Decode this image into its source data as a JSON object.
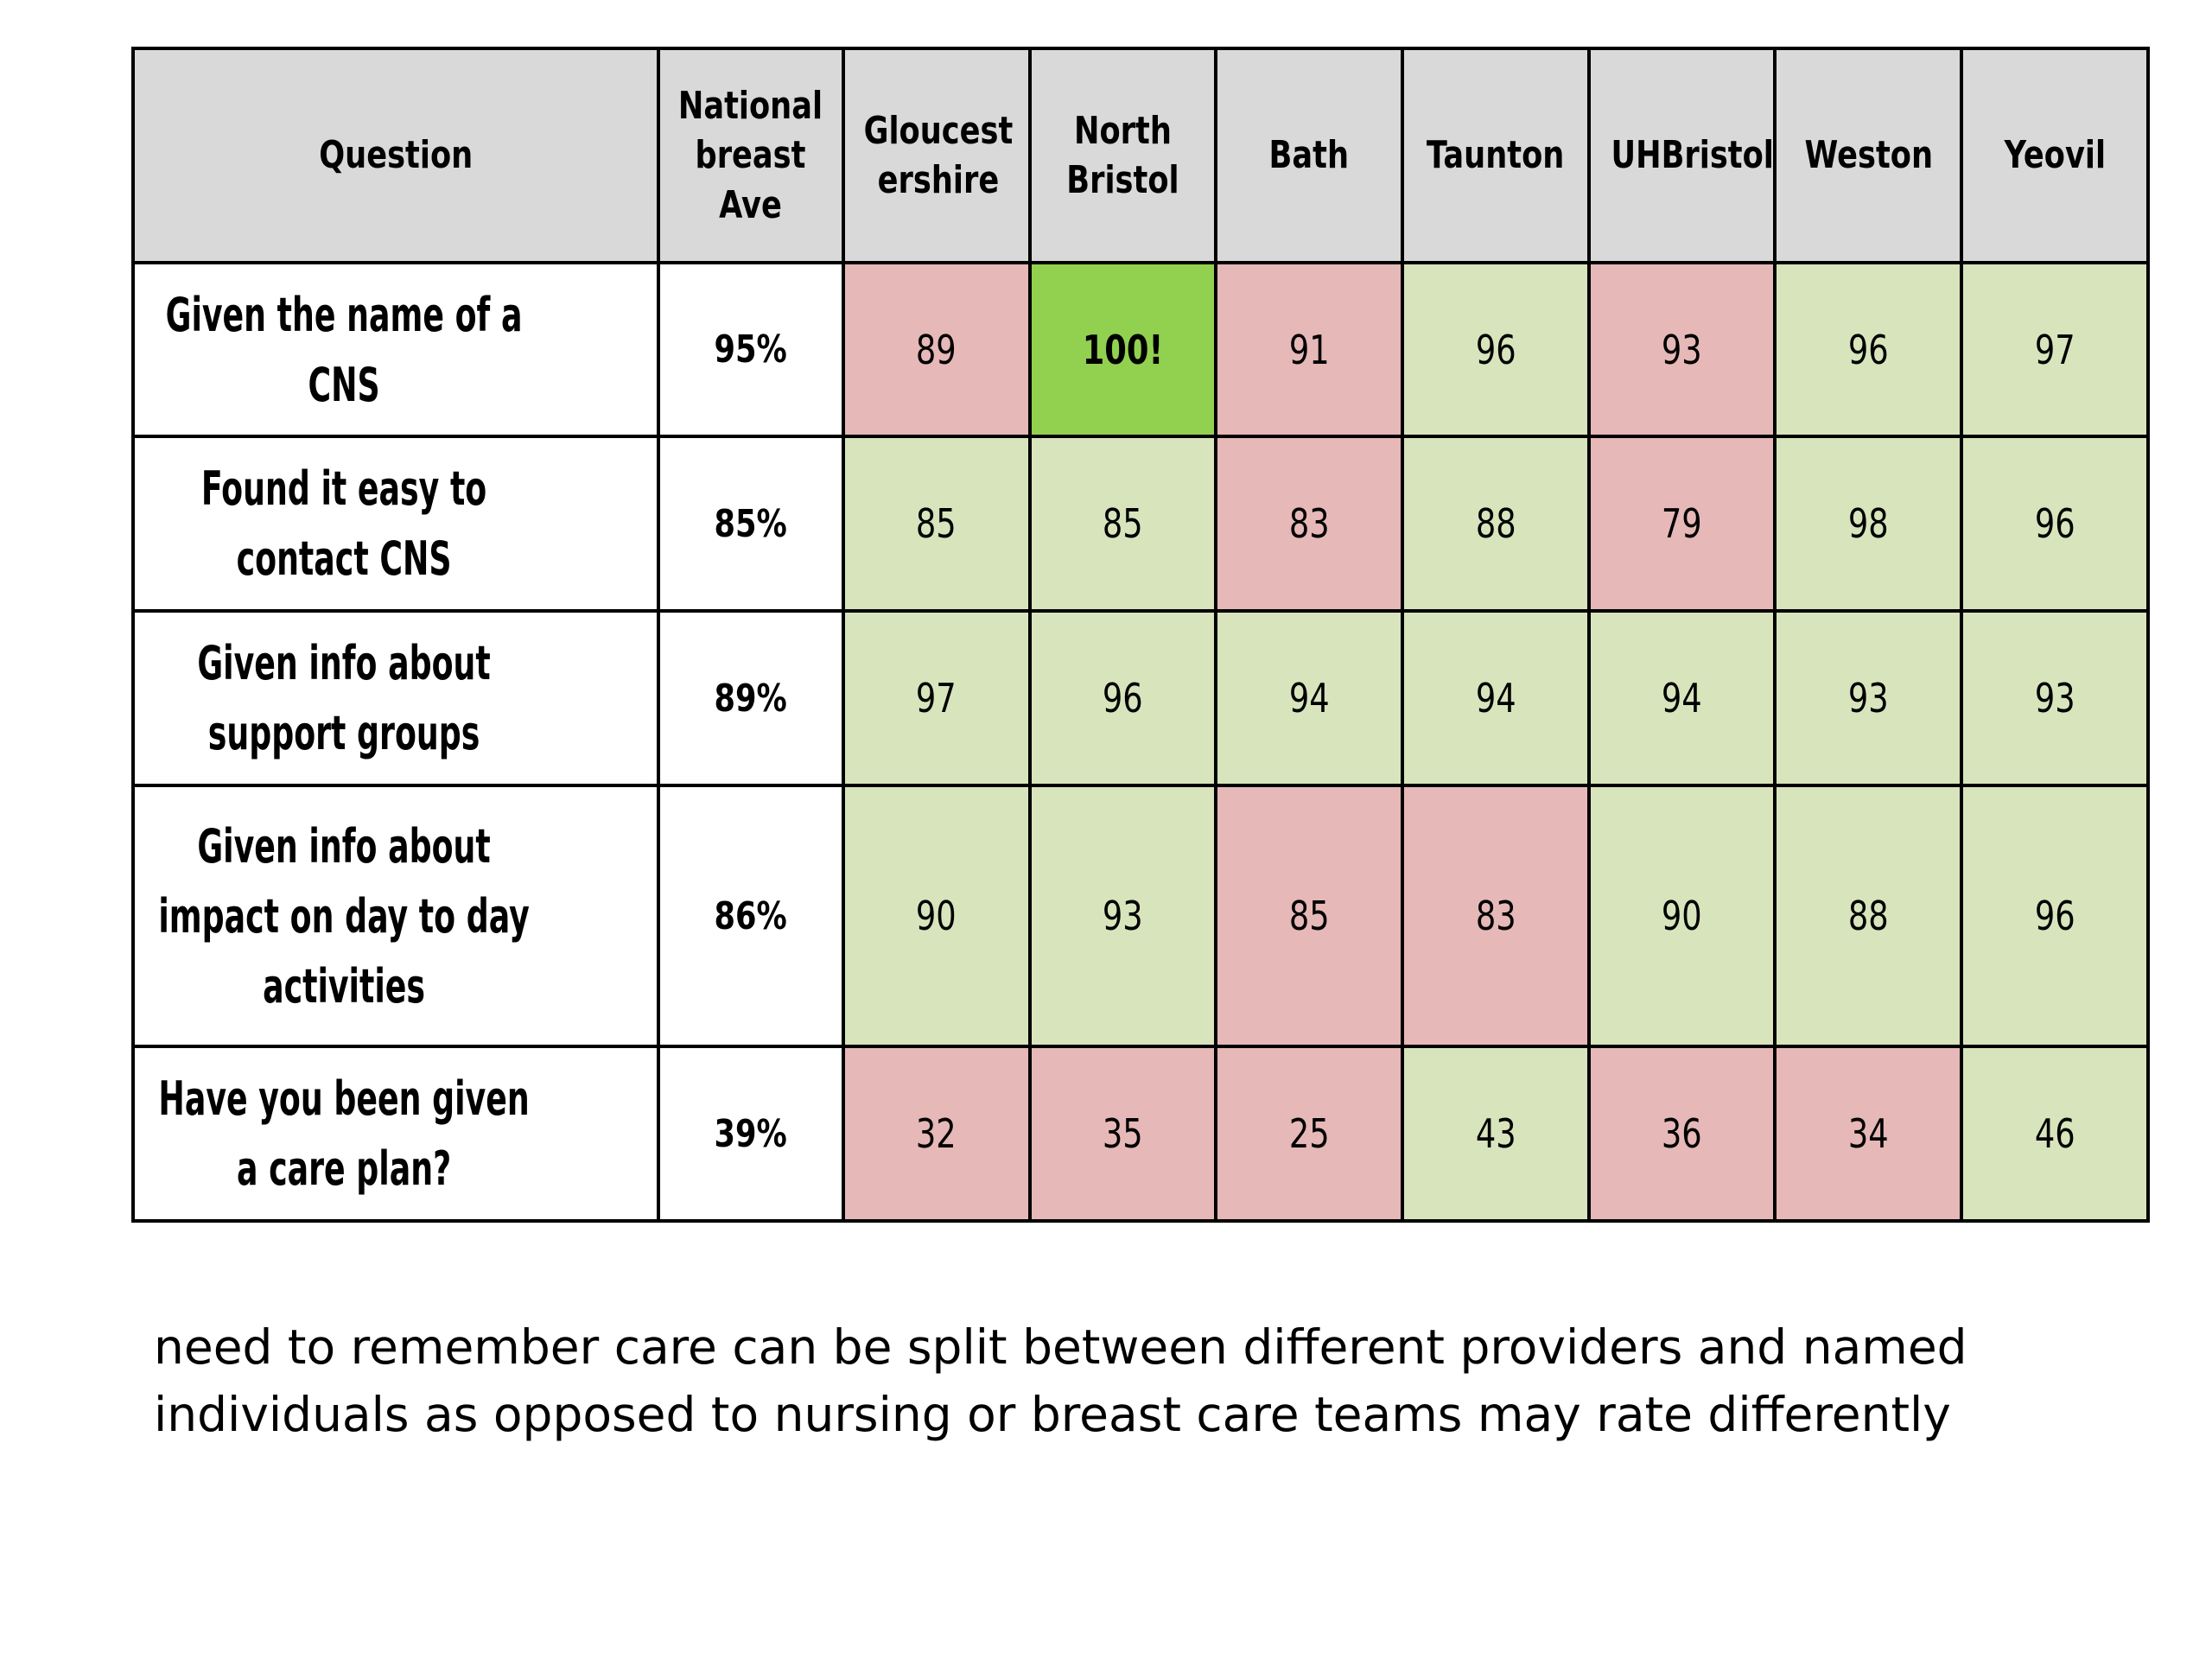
{
  "table": {
    "headers": {
      "question": "Question",
      "national": [
        "National",
        "breast",
        "Ave"
      ],
      "providers": [
        [
          "Gloucest",
          "ershire"
        ],
        [
          "North",
          "Bristol"
        ],
        [
          "Bath"
        ],
        [
          "Taunton"
        ],
        [
          "UHBristol"
        ],
        [
          "Weston"
        ],
        [
          "Yeovil"
        ]
      ]
    },
    "rows": [
      {
        "question": [
          "Given the name of a",
          "CNS"
        ],
        "national": "95%",
        "values": [
          "89",
          "100!",
          "91",
          "96",
          "93",
          "96",
          "97"
        ],
        "status": [
          "bad",
          "best",
          "bad",
          "good",
          "bad",
          "good",
          "good"
        ]
      },
      {
        "question": [
          "Found it easy to",
          "contact CNS"
        ],
        "national": "85%",
        "values": [
          "85",
          "85",
          "83",
          "88",
          "79",
          "98",
          "96"
        ],
        "status": [
          "good",
          "good",
          "bad",
          "good",
          "bad",
          "good",
          "good"
        ]
      },
      {
        "question": [
          "Given info about",
          "support groups"
        ],
        "national": "89%",
        "values": [
          "97",
          "96",
          "94",
          "94",
          "94",
          "93",
          "93"
        ],
        "status": [
          "good",
          "good",
          "good",
          "good",
          "good",
          "good",
          "good"
        ]
      },
      {
        "question": [
          "Given info about",
          "impact on day to day",
          "activities"
        ],
        "national": "86%",
        "values": [
          "90",
          "93",
          "85",
          "83",
          "90",
          "88",
          "96"
        ],
        "status": [
          "good",
          "good",
          "bad",
          "bad",
          "good",
          "good",
          "good"
        ]
      },
      {
        "question": [
          "Have you been given",
          "a care plan?"
        ],
        "national": "39%",
        "values": [
          "32",
          "35",
          "25",
          "43",
          "36",
          "34",
          "46"
        ],
        "status": [
          "bad",
          "bad",
          "bad",
          "good",
          "bad",
          "bad",
          "good"
        ]
      }
    ],
    "colors": {
      "good": "#d8e4bc",
      "bad": "#e6b8b7",
      "best": "#92d050",
      "header": "#d9d9d9"
    }
  },
  "footnote": {
    "line1": "need to remember care can be split between different providers and named",
    "line2": "individuals as opposed to nursing or breast care teams may rate differently"
  }
}
